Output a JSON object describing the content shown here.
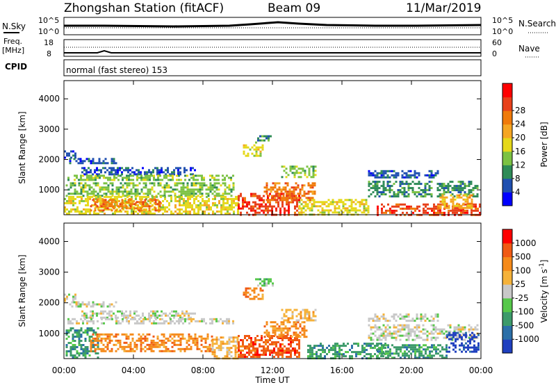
{
  "header": {
    "station": "Zhongshan Station (fitACF)",
    "beam": "Beam 09",
    "date": "11/Mar/2019"
  },
  "strips": {
    "nsky_label": "N.Sky",
    "nsearch_label": "N.Search",
    "freq_label_1": "Freq.",
    "freq_label_2": "[MHz]",
    "nave_label": "Nave",
    "cpid_label": "CPID",
    "cpid_text": "normal (fast stereo) 153",
    "noise_ticks": [
      "10^5",
      "10^0"
    ],
    "freq_ticks": [
      "18",
      "8"
    ],
    "nave_ticks": [
      "60",
      "0"
    ]
  },
  "chart_data": [
    {
      "type": "heatmap",
      "name": "power",
      "xlabel": "Time UT",
      "ylabel": "Slant Range [km]",
      "x_ticks": [
        "00:00",
        "04:00",
        "08:00",
        "12:00",
        "16:00",
        "20:00",
        "00:00"
      ],
      "y_ticks": [
        1000,
        2000,
        3000,
        4000
      ],
      "ylim": [
        180,
        4600
      ],
      "xlim_hours": [
        0,
        24
      ],
      "colorbar": {
        "label": "Power [dB]",
        "ticks": [
          "4",
          "8",
          "12",
          "16",
          "20",
          "24",
          "28"
        ],
        "colors": [
          "#0000ff",
          "#1f4fb0",
          "#2e8b57",
          "#7cc243",
          "#e5d81a",
          "#f5a623",
          "#f07a0a",
          "#e8401a",
          "#ff0000"
        ]
      },
      "regions": [
        {
          "t0": 0.0,
          "t1": 0.7,
          "r0": 2050,
          "r1": 2300,
          "c": 1
        },
        {
          "t0": 0.3,
          "t1": 3.0,
          "r0": 1850,
          "r1": 2050,
          "c": 1
        },
        {
          "t0": 1.0,
          "t1": 7.5,
          "r0": 1500,
          "r1": 1750,
          "c": 1
        },
        {
          "t0": 0.2,
          "t1": 9.8,
          "r0": 1300,
          "r1": 1500,
          "c": 3
        },
        {
          "t0": 0.1,
          "t1": 9.8,
          "r0": 800,
          "r1": 1250,
          "c": 3
        },
        {
          "t0": 0.0,
          "t1": 10.0,
          "r0": 200,
          "r1": 800,
          "c": 4
        },
        {
          "t0": 1.5,
          "t1": 5.5,
          "r0": 350,
          "r1": 700,
          "c": 6
        },
        {
          "t0": 10.0,
          "t1": 13.5,
          "r0": 200,
          "r1": 900,
          "c": 7
        },
        {
          "t0": 11.5,
          "t1": 14.5,
          "r0": 700,
          "r1": 1250,
          "c": 6
        },
        {
          "t0": 10.3,
          "t1": 11.5,
          "r0": 2100,
          "r1": 2500,
          "c": 4
        },
        {
          "t0": 11.0,
          "t1": 11.9,
          "r0": 2550,
          "r1": 2800,
          "c": 2
        },
        {
          "t0": 12.5,
          "t1": 14.5,
          "r0": 1400,
          "r1": 1800,
          "c": 3
        },
        {
          "t0": 13.5,
          "t1": 17.5,
          "r0": 200,
          "r1": 700,
          "c": 4
        },
        {
          "t0": 17.5,
          "t1": 21.5,
          "r0": 1400,
          "r1": 1650,
          "c": 1
        },
        {
          "t0": 17.5,
          "t1": 23.8,
          "r0": 800,
          "r1": 1300,
          "c": 2
        },
        {
          "t0": 18.0,
          "t1": 23.9,
          "r0": 200,
          "r1": 550,
          "c": 7
        },
        {
          "t0": 21.5,
          "t1": 23.5,
          "r0": 400,
          "r1": 850,
          "c": 5
        }
      ]
    },
    {
      "type": "heatmap",
      "name": "velocity",
      "xlabel": "Time UT",
      "ylabel": "Slant Range [km]",
      "x_ticks": [
        "00:00",
        "04:00",
        "08:00",
        "12:00",
        "16:00",
        "20:00",
        "00:00"
      ],
      "y_ticks": [
        1000,
        2000,
        3000,
        4000
      ],
      "ylim": [
        180,
        4600
      ],
      "xlim_hours": [
        0,
        24
      ],
      "colorbar": {
        "label": "Velocity [m s",
        "label_sup": "-1",
        "label_end": "]",
        "ticks": [
          "1000",
          "500",
          "100",
          "25",
          "-25",
          "-100",
          "-500",
          "-1000"
        ],
        "colors": [
          "#1f3fbf",
          "#2b6fa8",
          "#3c9a6a",
          "#56c84a",
          "#c8c8c8",
          "#f5b23a",
          "#f58a1a",
          "#f05a14",
          "#ff0000"
        ]
      },
      "regions": [
        {
          "t0": 0.0,
          "t1": 0.7,
          "r0": 2050,
          "r1": 2300,
          "c": 4
        },
        {
          "t0": 0.3,
          "t1": 3.0,
          "r0": 1850,
          "r1": 2050,
          "c": 4
        },
        {
          "t0": 1.0,
          "t1": 7.5,
          "r0": 1500,
          "r1": 1750,
          "c": 4
        },
        {
          "t0": 0.2,
          "t1": 9.8,
          "r0": 1300,
          "r1": 1500,
          "c": 4
        },
        {
          "t0": 0.1,
          "t1": 2.0,
          "r0": 200,
          "r1": 1200,
          "c": 2
        },
        {
          "t0": 1.5,
          "t1": 8.5,
          "r0": 400,
          "r1": 1000,
          "c": 6
        },
        {
          "t0": 8.5,
          "t1": 10.0,
          "r0": 200,
          "r1": 900,
          "c": 5
        },
        {
          "t0": 10.0,
          "t1": 13.5,
          "r0": 250,
          "r1": 950,
          "c": 7
        },
        {
          "t0": 11.5,
          "t1": 14.0,
          "r0": 900,
          "r1": 1400,
          "c": 6
        },
        {
          "t0": 11.0,
          "t1": 12.0,
          "r0": 2550,
          "r1": 2800,
          "c": 3
        },
        {
          "t0": 10.3,
          "t1": 11.5,
          "r0": 2100,
          "r1": 2500,
          "c": 6
        },
        {
          "t0": 12.5,
          "t1": 14.5,
          "r0": 1400,
          "r1": 1800,
          "c": 5
        },
        {
          "t0": 14.0,
          "t1": 18.5,
          "r0": 200,
          "r1": 700,
          "c": 2
        },
        {
          "t0": 17.5,
          "t1": 21.5,
          "r0": 1400,
          "r1": 1650,
          "c": 4
        },
        {
          "t0": 17.5,
          "t1": 23.8,
          "r0": 800,
          "r1": 1300,
          "c": 4
        },
        {
          "t0": 18.0,
          "t1": 22.0,
          "r0": 200,
          "r1": 650,
          "c": 2
        },
        {
          "t0": 22.0,
          "t1": 23.9,
          "r0": 400,
          "r1": 1050,
          "c": 0
        }
      ]
    }
  ]
}
